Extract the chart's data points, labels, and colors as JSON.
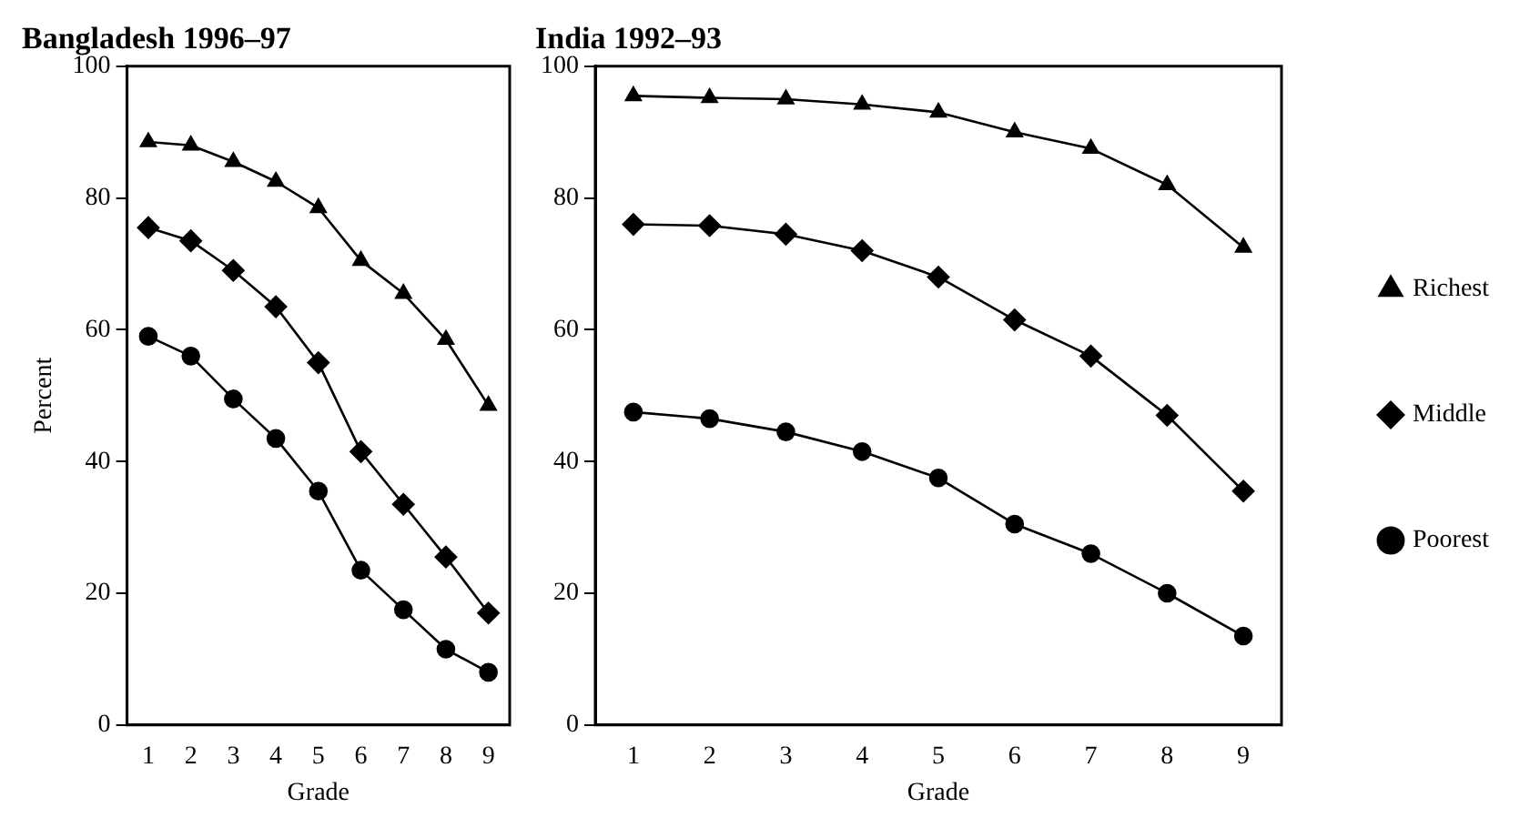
{
  "chart_data": [
    {
      "type": "line",
      "title": "Bangladesh 1996–97",
      "xlabel": "Grade",
      "ylabel": "Percent",
      "categories": [
        "1",
        "2",
        "3",
        "4",
        "5",
        "6",
        "7",
        "8",
        "9"
      ],
      "ylim": [
        0,
        100
      ],
      "yticks": [
        0,
        20,
        40,
        60,
        80,
        100
      ],
      "grid": false,
      "legend": false,
      "series": [
        {
          "color": "#000000",
          "marker": "triangle",
          "values": [
            88.5,
            88,
            85.5,
            82.5,
            78.5,
            70.5,
            65.5,
            58.5,
            48.5
          ]
        },
        {
          "color": "#000000",
          "marker": "diamond",
          "values": [
            75.5,
            73.5,
            69,
            63.5,
            55,
            41.5,
            33.5,
            25.5,
            17
          ]
        },
        {
          "color": "#000000",
          "marker": "circle",
          "values": [
            59,
            56,
            49.5,
            43.5,
            35.5,
            23.5,
            17.5,
            11.5,
            8
          ]
        }
      ]
    },
    {
      "type": "line",
      "title": "India 1992–93",
      "xlabel": "Grade",
      "categories": [
        "1",
        "2",
        "3",
        "4",
        "5",
        "6",
        "7",
        "8",
        "9"
      ],
      "ylim": [
        0,
        100
      ],
      "yticks": [
        0,
        20,
        40,
        60,
        80,
        100
      ],
      "grid": false,
      "legend": "right",
      "series": [
        {
          "name": "Richest",
          "color": "#000000",
          "marker": "triangle",
          "values": [
            95.5,
            95.2,
            95,
            94.2,
            93,
            90,
            87.5,
            82,
            72.5
          ]
        },
        {
          "name": "Middle",
          "color": "#000000",
          "marker": "diamond",
          "values": [
            76,
            75.8,
            74.5,
            72,
            68,
            61.5,
            56,
            47,
            35.5
          ]
        },
        {
          "name": "Poorest",
          "color": "#000000",
          "marker": "circle",
          "values": [
            47.5,
            46.5,
            44.5,
            41.5,
            37.5,
            30.5,
            26,
            20,
            13.5
          ]
        }
      ]
    }
  ]
}
